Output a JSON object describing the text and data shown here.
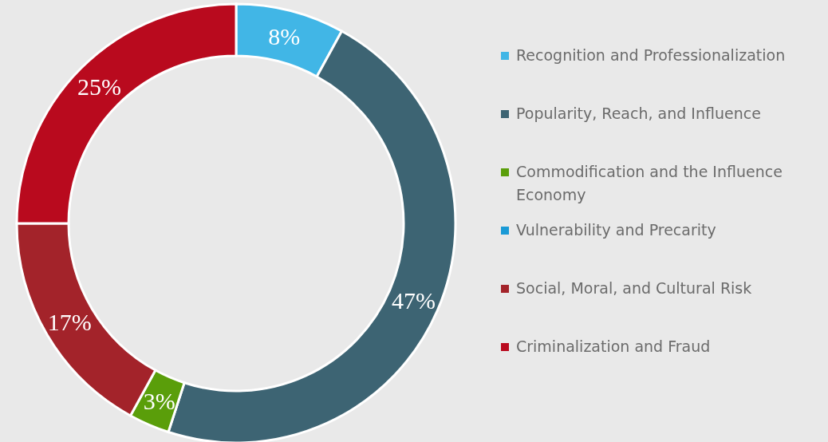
{
  "chart_data": {
    "type": "donut",
    "categories": [
      "Recognition and Professionalization",
      "Popularity, Reach, and Influence",
      "Commodification and the Influence Economy",
      "Vulnerability and Precarity",
      "Social, Moral, and Cultural Risk",
      "Criminalization and Fraud"
    ],
    "values": [
      8,
      47,
      3,
      0,
      17,
      25
    ],
    "colors": [
      "#41b6e6",
      "#3d6473",
      "#5a9e0a",
      "#1a9ad6",
      "#a3232a",
      "#b90a1e"
    ],
    "value_labels": [
      "8%",
      "47%",
      "3%",
      null,
      "17%",
      "25%"
    ],
    "legend": "right"
  }
}
